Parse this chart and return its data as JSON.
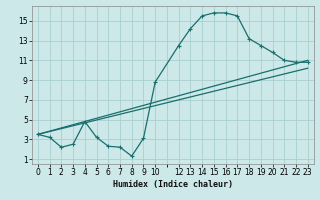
{
  "xlabel": "Humidex (Indice chaleur)",
  "background_color": "#cce8e8",
  "grid_color": "#aacece",
  "line_color": "#1a6e6e",
  "xlim": [
    -0.5,
    23.5
  ],
  "ylim": [
    0.5,
    16.5
  ],
  "xtick_positions": [
    0,
    1,
    2,
    3,
    4,
    5,
    6,
    7,
    8,
    9,
    10,
    12,
    13,
    14,
    15,
    16,
    17,
    18,
    19,
    20,
    21,
    22,
    23
  ],
  "xtick_labels": [
    "0",
    "1",
    "2",
    "3",
    "4",
    "5",
    "6",
    "7",
    "8",
    "9",
    "10",
    "12",
    "13",
    "14",
    "15",
    "16",
    "17",
    "18",
    "19",
    "20",
    "21",
    "22",
    "23"
  ],
  "ytick_positions": [
    1,
    3,
    5,
    7,
    9,
    11,
    13,
    15
  ],
  "ytick_labels": [
    "1",
    "3",
    "5",
    "7",
    "9",
    "11",
    "13",
    "15"
  ],
  "line1_x": [
    0,
    1,
    2,
    3,
    4,
    5,
    6,
    7,
    8,
    9,
    10,
    12,
    13,
    14,
    15,
    16,
    17,
    18,
    19,
    20,
    21,
    22,
    23
  ],
  "line1_y": [
    3.5,
    3.2,
    2.2,
    2.5,
    4.8,
    3.2,
    2.3,
    2.2,
    1.3,
    3.1,
    8.8,
    12.5,
    14.2,
    15.5,
    15.8,
    15.8,
    15.5,
    13.2,
    12.5,
    11.8,
    11.0,
    10.8,
    10.8
  ],
  "line2_x": [
    0,
    23
  ],
  "line2_y": [
    3.5,
    11.0
  ],
  "line3_x": [
    0,
    23
  ],
  "line3_y": [
    3.5,
    10.2
  ],
  "xlabel_fontsize": 6.0,
  "tick_fontsize": 5.5
}
